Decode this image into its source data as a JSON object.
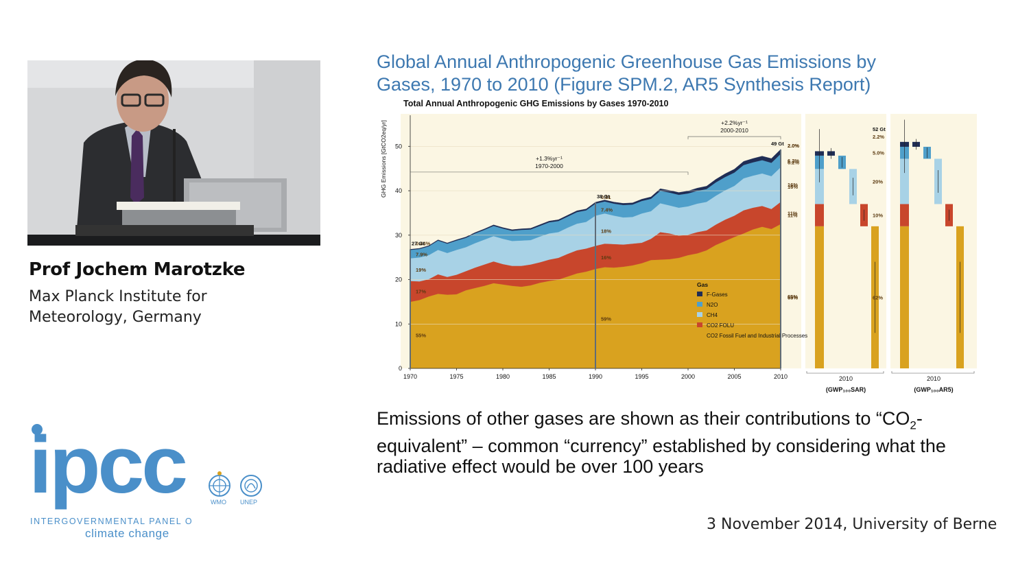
{
  "speaker": {
    "name": "Prof Jochem Marotzke",
    "affiliation_line1": "Max Planck Institute for",
    "affiliation_line2": "Meteorology, Germany"
  },
  "logos": {
    "ipcc_mark": "ipcc",
    "ipcc_line1": "INTERGOVERNMENTAL PANEL ON",
    "ipcc_line2": "climate change",
    "wmo": "WMO",
    "unep": "UNEP",
    "ipcc_color": "#4a8fc9"
  },
  "slide": {
    "title_line1": "Global Annual Anthropogenic Greenhouse Gas Emissions by",
    "title_line2": "Gases, 1970 to 2010 (Figure SPM.2, AR5 Synthesis Report)",
    "caption_part1": "Emissions of other gases are shown as their contributions to “CO",
    "caption_sub": "2",
    "caption_part2": "-equivalent” – common “currency” established by considering what the radiative effect would be over 100 years",
    "footer": "3 November 2014, University of Berne"
  },
  "chart_data": {
    "type": "area",
    "title": "Total Annual Anthropogenic GHG Emissions by Gases 1970-2010",
    "ylabel": "GHG Emissions [GtCO2eq/yr]",
    "ylim": [
      0,
      57
    ],
    "xlim": [
      1970,
      2010
    ],
    "x_ticks": [
      "1970",
      "1975",
      "1980",
      "1985",
      "1990",
      "1995",
      "2000",
      "2005",
      "2010"
    ],
    "y_ticks": [
      "0",
      "10",
      "20",
      "30",
      "40",
      "50"
    ],
    "x": [
      1970,
      1971,
      1972,
      1973,
      1974,
      1975,
      1976,
      1977,
      1978,
      1979,
      1980,
      1981,
      1982,
      1983,
      1984,
      1985,
      1986,
      1987,
      1988,
      1989,
      1990,
      1991,
      1992,
      1993,
      1994,
      1995,
      1996,
      1997,
      1998,
      1999,
      2000,
      2001,
      2002,
      2003,
      2004,
      2005,
      2006,
      2007,
      2008,
      2009,
      2010
    ],
    "series": [
      {
        "name": "CO2 Fossil Fuel and Industrial Processes",
        "color": "#d9a21f",
        "values": [
          15.0,
          15.4,
          16.2,
          16.8,
          16.6,
          16.7,
          17.6,
          18.1,
          18.6,
          19.2,
          18.9,
          18.6,
          18.4,
          18.7,
          19.3,
          19.7,
          20.0,
          20.7,
          21.4,
          21.8,
          22.4,
          22.8,
          22.7,
          22.9,
          23.2,
          23.7,
          24.4,
          24.5,
          24.6,
          24.9,
          25.5,
          25.9,
          26.6,
          27.8,
          28.7,
          29.6,
          30.4,
          31.3,
          31.9,
          31.4,
          32.5
        ]
      },
      {
        "name": "CO2 FOLU",
        "color": "#c8462c",
        "values": [
          4.7,
          4.2,
          3.9,
          4.4,
          4.0,
          4.4,
          4.3,
          4.6,
          4.8,
          4.9,
          4.6,
          4.5,
          4.7,
          4.7,
          4.6,
          4.8,
          4.9,
          5.1,
          5.2,
          5.2,
          5.2,
          5.3,
          5.3,
          5.0,
          4.9,
          4.6,
          4.8,
          6.2,
          5.8,
          5.0,
          4.6,
          4.8,
          4.5,
          4.6,
          4.8,
          4.8,
          5.2,
          4.9,
          4.7,
          4.5,
          5.0
        ]
      },
      {
        "name": "CH4",
        "color": "#a8d2e6",
        "values": [
          5.1,
          5.4,
          5.4,
          5.5,
          5.4,
          5.6,
          5.4,
          5.5,
          5.6,
          5.7,
          5.7,
          5.6,
          5.7,
          5.5,
          5.8,
          5.9,
          5.8,
          5.9,
          6.0,
          6.0,
          6.8,
          6.8,
          6.4,
          6.1,
          6.0,
          6.6,
          6.2,
          6.5,
          6.3,
          6.3,
          6.4,
          6.4,
          6.4,
          6.5,
          6.6,
          6.7,
          7.2,
          7.2,
          7.3,
          7.4,
          7.8
        ]
      },
      {
        "name": "N2O",
        "color": "#4f9fca",
        "values": [
          1.9,
          1.9,
          2.0,
          2.1,
          2.1,
          2.1,
          2.1,
          2.2,
          2.2,
          2.3,
          2.3,
          2.3,
          2.4,
          2.4,
          2.4,
          2.5,
          2.5,
          2.5,
          2.6,
          2.6,
          2.7,
          2.7,
          2.7,
          2.8,
          2.8,
          2.8,
          2.8,
          2.8,
          2.9,
          2.9,
          2.9,
          2.9,
          2.9,
          3.0,
          3.0,
          3.0,
          3.0,
          3.0,
          3.0,
          3.0,
          3.0
        ]
      },
      {
        "name": "F-Gases",
        "color": "#1f2d55",
        "values": [
          0.12,
          0.13,
          0.14,
          0.15,
          0.16,
          0.17,
          0.18,
          0.19,
          0.2,
          0.21,
          0.22,
          0.23,
          0.24,
          0.25,
          0.26,
          0.27,
          0.28,
          0.29,
          0.3,
          0.3,
          0.31,
          0.32,
          0.34,
          0.36,
          0.38,
          0.4,
          0.42,
          0.45,
          0.48,
          0.51,
          0.55,
          0.59,
          0.63,
          0.67,
          0.72,
          0.76,
          0.8,
          0.85,
          0.9,
          0.95,
          1.0
        ]
      }
    ],
    "legend_title": "Gas",
    "legend_entries": [
      {
        "label": "F-Gases",
        "color": "#1f2d55"
      },
      {
        "label": "N2O",
        "color": "#4f9fca"
      },
      {
        "label": "CH4",
        "color": "#a8d2e6"
      },
      {
        "label": "CO2 FOLU",
        "color": "#c8462c"
      },
      {
        "label": "CO2 Fossil Fuel and Industrial Processes",
        "color": "#d9a21f"
      }
    ],
    "legend_position": "bottom-right",
    "annotations": {
      "t1970_total": "27 Gt",
      "t1970_pcts": [
        "0.44%",
        "7.9%",
        "19%",
        "17%",
        "55%"
      ],
      "t1990_total": "38 Gt",
      "t1990_pcts": [
        "0.81",
        "7.4%",
        "18%",
        "16%",
        "59%"
      ],
      "t2010_total": "49 Gt",
      "t2010_pcts": [
        "2.0%",
        "6.2%",
        "16%",
        "11%",
        "65%"
      ],
      "growth1_rate": "+1.3%yr⁻¹",
      "growth1_period": "1970-2000",
      "growth2_rate": "+2.2%yr⁻¹",
      "growth2_period": "2000-2010"
    },
    "side_panels": [
      {
        "label": "2010",
        "metric": "(GWP₁₀₀SAR)",
        "total": "",
        "pcts": [
          "2.0%",
          "6.2%",
          "16%",
          "11%",
          "65%"
        ],
        "values": [
          32.0,
          5.0,
          7.9,
          3.0,
          1.0
        ]
      },
      {
        "label": "2010",
        "metric": "(GWP₁₀₀AR5)",
        "total": "52 Gt",
        "pcts": [
          "2.2%",
          "5.0%",
          "20%",
          "10%",
          "62%"
        ],
        "values": [
          32.0,
          5.0,
          10.2,
          2.7,
          1.1
        ]
      }
    ],
    "background": "#fbf6e3"
  }
}
